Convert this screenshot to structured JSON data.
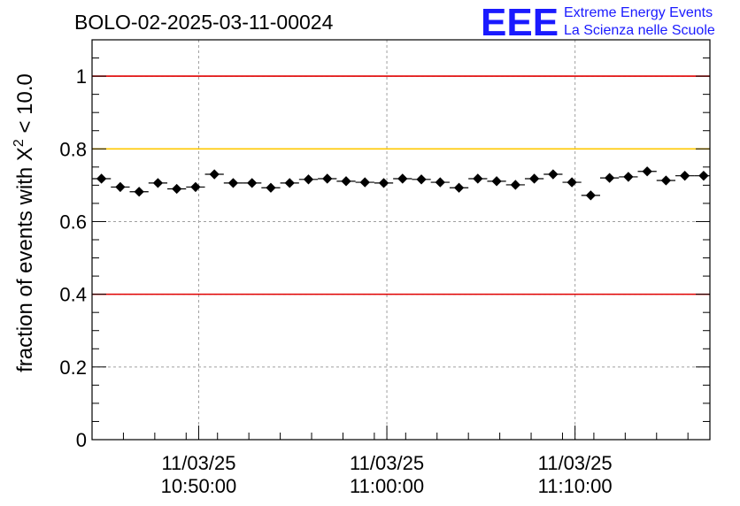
{
  "chart_data": {
    "type": "scatter",
    "title": "BOLO-02-2025-03-11-00024",
    "ylabel_prefix": "fraction of events with ",
    "ylabel_symbol": "X",
    "ylabel_sup": "2",
    "ylabel_suffix": " < 10.0",
    "xlabel": "",
    "ylim": [
      0,
      1.1
    ],
    "yticks": [
      "0",
      "0.2",
      "0.4",
      "0.6",
      "0.8",
      "1"
    ],
    "xlim": [
      "10:44:20",
      "11:17:10"
    ],
    "xticks": [
      {
        "date": "11/03/25",
        "time": "10:50:00"
      },
      {
        "date": "11/03/25",
        "time": "11:00:00"
      },
      {
        "date": "11/03/25",
        "time": "11:10:00"
      }
    ],
    "grid": true,
    "reference_lines": [
      {
        "y": 1.0,
        "color": "#e00000"
      },
      {
        "y": 0.8,
        "color": "#ffc800"
      },
      {
        "y": 0.4,
        "color": "#e00000"
      }
    ],
    "series": [
      {
        "marker_color": "#000000",
        "points": [
          {
            "x": "10:44:50",
            "y": 0.718
          },
          {
            "x": "10:45:50",
            "y": 0.695
          },
          {
            "x": "10:46:50",
            "y": 0.682
          },
          {
            "x": "10:47:50",
            "y": 0.706
          },
          {
            "x": "10:48:50",
            "y": 0.69
          },
          {
            "x": "10:49:50",
            "y": 0.695
          },
          {
            "x": "10:50:50",
            "y": 0.73
          },
          {
            "x": "10:51:50",
            "y": 0.706
          },
          {
            "x": "10:52:50",
            "y": 0.706
          },
          {
            "x": "10:53:50",
            "y": 0.693
          },
          {
            "x": "10:54:50",
            "y": 0.706
          },
          {
            "x": "10:55:50",
            "y": 0.716
          },
          {
            "x": "10:56:50",
            "y": 0.718
          },
          {
            "x": "10:57:50",
            "y": 0.711
          },
          {
            "x": "10:58:50",
            "y": 0.708
          },
          {
            "x": "10:59:50",
            "y": 0.706
          },
          {
            "x": "11:00:50",
            "y": 0.718
          },
          {
            "x": "11:01:50",
            "y": 0.716
          },
          {
            "x": "11:02:50",
            "y": 0.708
          },
          {
            "x": "11:03:50",
            "y": 0.693
          },
          {
            "x": "11:04:50",
            "y": 0.718
          },
          {
            "x": "11:05:50",
            "y": 0.711
          },
          {
            "x": "11:06:50",
            "y": 0.701
          },
          {
            "x": "11:07:50",
            "y": 0.718
          },
          {
            "x": "11:08:50",
            "y": 0.73
          },
          {
            "x": "11:09:50",
            "y": 0.708
          },
          {
            "x": "11:10:50",
            "y": 0.672
          },
          {
            "x": "11:11:50",
            "y": 0.72
          },
          {
            "x": "11:12:50",
            "y": 0.723
          },
          {
            "x": "11:13:50",
            "y": 0.738
          },
          {
            "x": "11:14:50",
            "y": 0.713
          },
          {
            "x": "11:15:50",
            "y": 0.726
          },
          {
            "x": "11:16:50",
            "y": 0.726
          }
        ]
      }
    ]
  },
  "logo": {
    "mark": "EEE",
    "line1": "Extreme Energy Events",
    "line2": "La Scienza nelle Scuole",
    "color": "#1a1aff"
  }
}
